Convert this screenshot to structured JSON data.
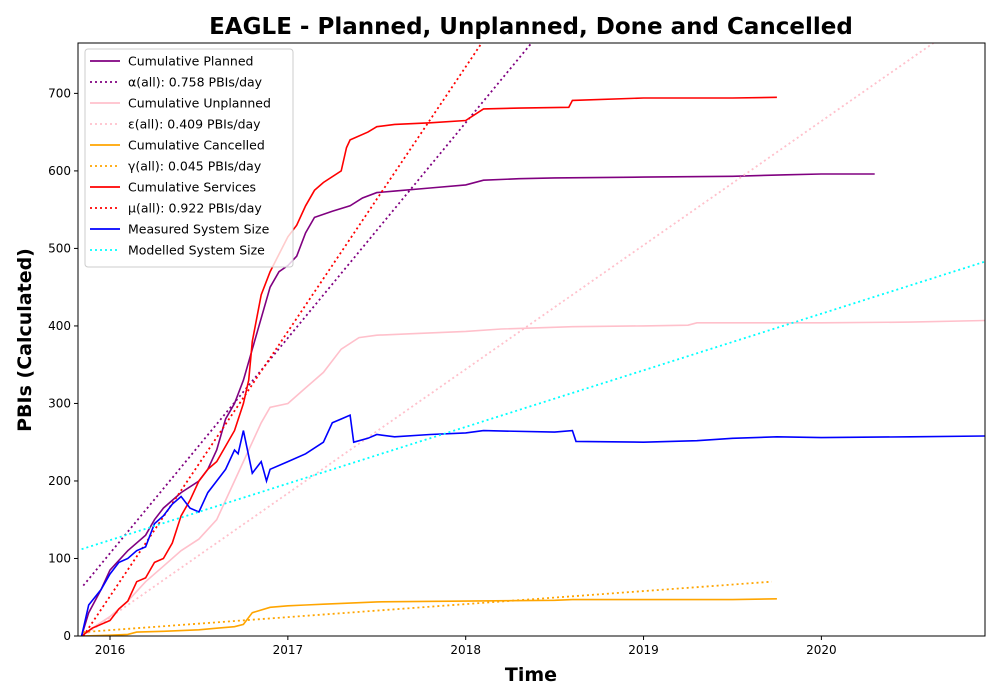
{
  "chart_data": {
    "type": "line",
    "title": "EAGLE - Planned, Unplanned, Done  and Cancelled",
    "xlabel": "Time",
    "ylabel": "PBIs (Calculated)",
    "xlim": [
      2015.82,
      2020.92
    ],
    "ylim": [
      0,
      765
    ],
    "x_ticks": [
      2016,
      2017,
      2018,
      2019,
      2020
    ],
    "y_ticks": [
      0,
      100,
      200,
      300,
      400,
      500,
      600,
      700
    ],
    "grid": false,
    "legend_position": "top-left",
    "series": [
      {
        "name": "Cumulative Planned",
        "color": "#800080",
        "style": "solid",
        "x": [
          2015.84,
          2015.88,
          2015.95,
          2016.0,
          2016.1,
          2016.2,
          2016.25,
          2016.3,
          2016.4,
          2016.5,
          2016.55,
          2016.6,
          2016.65,
          2016.7,
          2016.75,
          2016.8,
          2016.85,
          2016.9,
          2016.95,
          2017.0,
          2017.05,
          2017.1,
          2017.15,
          2017.25,
          2017.35,
          2017.42,
          2017.5,
          2017.6,
          2017.8,
          2018.0,
          2018.1,
          2018.3,
          2018.5,
          2019.0,
          2019.5,
          2019.8,
          2020.0,
          2020.3
        ],
        "y": [
          0,
          30,
          60,
          85,
          110,
          130,
          150,
          165,
          185,
          200,
          215,
          240,
          280,
          300,
          330,
          370,
          410,
          450,
          470,
          478,
          490,
          520,
          540,
          548,
          555,
          565,
          572,
          574,
          578,
          582,
          588,
          590,
          591,
          592,
          593,
          595,
          596,
          596
        ]
      },
      {
        "name": "α(all): 0.758 PBIs/day",
        "color": "#800080",
        "style": "dotted",
        "x": [
          2015.85,
          2018.37
        ],
        "y": [
          65,
          765
        ]
      },
      {
        "name": "Cumulative Unplanned",
        "color": "#ffc0cb",
        "style": "solid",
        "x": [
          2015.84,
          2015.9,
          2016.0,
          2016.1,
          2016.2,
          2016.3,
          2016.4,
          2016.5,
          2016.6,
          2016.7,
          2016.8,
          2016.85,
          2016.9,
          2017.0,
          2017.1,
          2017.2,
          2017.3,
          2017.4,
          2017.5,
          2017.7,
          2018.0,
          2018.2,
          2018.6,
          2019.0,
          2019.25,
          2019.3,
          2019.6,
          2020.0,
          2020.5,
          2020.92
        ],
        "y": [
          0,
          10,
          25,
          45,
          70,
          90,
          110,
          125,
          150,
          200,
          250,
          275,
          295,
          300,
          320,
          340,
          370,
          385,
          388,
          390,
          393,
          396,
          399,
          400,
          401,
          404,
          404,
          404,
          405,
          407
        ]
      },
      {
        "name": "ε(all): 0.409 PBIs/day",
        "color": "#ffc0cb",
        "style": "dotted",
        "x": [
          2015.85,
          2020.63
        ],
        "y": [
          0,
          765
        ]
      },
      {
        "name": "Cumulative Cancelled",
        "color": "#ffa500",
        "style": "solid",
        "x": [
          2015.84,
          2016.0,
          2016.1,
          2016.15,
          2016.3,
          2016.4,
          2016.5,
          2016.6,
          2016.7,
          2016.75,
          2016.8,
          2016.9,
          2017.0,
          2017.1,
          2017.2,
          2017.5,
          2018.0,
          2018.5,
          2018.6,
          2019.0,
          2019.5,
          2019.75
        ],
        "y": [
          0,
          1,
          2,
          5,
          6,
          7,
          8,
          10,
          12,
          15,
          30,
          37,
          39,
          40,
          41,
          44,
          45,
          46,
          47,
          47,
          47,
          48
        ]
      },
      {
        "name": "γ(all): 0.045 PBIs/day",
        "color": "#ffa500",
        "style": "dotted",
        "x": [
          2015.85,
          2019.72
        ],
        "y": [
          5,
          70
        ]
      },
      {
        "name": "Cumulative Services",
        "color": "#ff0000",
        "style": "solid",
        "x": [
          2015.84,
          2015.9,
          2016.0,
          2016.05,
          2016.1,
          2016.15,
          2016.2,
          2016.25,
          2016.3,
          2016.35,
          2016.4,
          2016.45,
          2016.5,
          2016.55,
          2016.6,
          2016.65,
          2016.7,
          2016.75,
          2016.78,
          2016.8,
          2016.85,
          2016.9,
          2017.0,
          2017.05,
          2017.1,
          2017.15,
          2017.2,
          2017.3,
          2017.33,
          2017.35,
          2017.45,
          2017.5,
          2017.6,
          2017.8,
          2018.0,
          2018.1,
          2018.3,
          2018.58,
          2018.6,
          2019.0,
          2019.5,
          2019.75
        ],
        "y": [
          0,
          10,
          20,
          35,
          45,
          70,
          75,
          95,
          100,
          120,
          155,
          175,
          200,
          215,
          225,
          245,
          265,
          300,
          330,
          380,
          440,
          470,
          515,
          530,
          555,
          575,
          585,
          600,
          630,
          640,
          650,
          657,
          660,
          662,
          665,
          680,
          681,
          682,
          691,
          694,
          694,
          695
        ]
      },
      {
        "name": "μ(all): 0.922 PBIs/day",
        "color": "#ff0000",
        "style": "dotted",
        "x": [
          2015.85,
          2018.09
        ],
        "y": [
          0,
          765
        ]
      },
      {
        "name": "Measured System Size",
        "color": "#0000ff",
        "style": "solid",
        "x": [
          2015.84,
          2015.88,
          2015.95,
          2016.0,
          2016.05,
          2016.1,
          2016.15,
          2016.2,
          2016.25,
          2016.3,
          2016.35,
          2016.4,
          2016.45,
          2016.5,
          2016.55,
          2016.6,
          2016.65,
          2016.7,
          2016.72,
          2016.75,
          2016.8,
          2016.85,
          2016.88,
          2016.9,
          2017.0,
          2017.1,
          2017.2,
          2017.25,
          2017.3,
          2017.35,
          2017.37,
          2017.45,
          2017.5,
          2017.6,
          2017.8,
          2018.0,
          2018.1,
          2018.5,
          2018.6,
          2018.62,
          2019.0,
          2019.3,
          2019.5,
          2019.75,
          2020.0,
          2020.5,
          2020.92
        ],
        "y": [
          0,
          40,
          60,
          80,
          95,
          100,
          110,
          115,
          145,
          155,
          170,
          180,
          165,
          160,
          185,
          200,
          215,
          240,
          235,
          265,
          210,
          225,
          200,
          215,
          225,
          235,
          250,
          275,
          280,
          285,
          250,
          255,
          260,
          257,
          260,
          262,
          265,
          263,
          265,
          251,
          250,
          252,
          255,
          257,
          256,
          257,
          258
        ]
      },
      {
        "name": "Modelled System Size",
        "color": "#00ffff",
        "style": "dotted",
        "x": [
          2015.84,
          2020.92
        ],
        "y": [
          112,
          483
        ]
      }
    ]
  }
}
